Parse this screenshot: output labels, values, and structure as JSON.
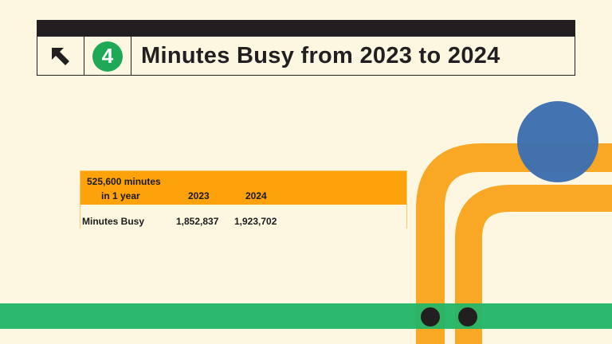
{
  "header": {
    "step_number": "4",
    "title": "Minutes Busy from 2023 to 2024",
    "arrow_icon": "arrow-up-left-icon"
  },
  "table": {
    "corner_line1": "525,600 minutes",
    "corner_line2": "in 1 year",
    "columns": [
      "2023",
      "2024"
    ],
    "rows": [
      {
        "label": "Minutes Busy",
        "values": [
          "1,852,837",
          "1,923,702"
        ]
      }
    ]
  },
  "colors": {
    "green": "#1fa855",
    "orange": "#fda20a",
    "blue": "#3d6fb0",
    "background": "#fdf7e2"
  }
}
